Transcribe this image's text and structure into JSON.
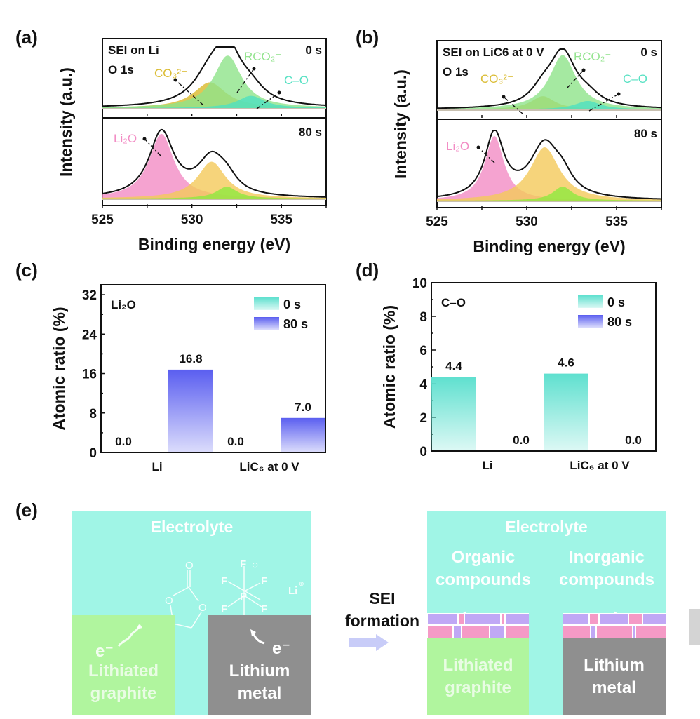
{
  "panels": {
    "a": "(a)",
    "b": "(b)",
    "c": "(c)",
    "d": "(d)",
    "e": "(e)"
  },
  "chart_data": [
    {
      "id": "a",
      "type": "area",
      "title": "SEI on Li",
      "subtitle": "O 1s",
      "xlabel": "Binding energy (eV)",
      "ylabel": "Intensity (a.u.)",
      "xlim": [
        525,
        537.5
      ],
      "xticks": [
        525,
        530,
        535
      ],
      "grid": false,
      "subplots": [
        {
          "time_label": "0 s",
          "components": [
            {
              "name": "CO3 2-",
              "label": "CO₃²⁻",
              "center": 531.0,
              "height": 0.42,
              "width": 1.1,
              "color": "#d9b92a"
            },
            {
              "name": "RCO2-",
              "label": "RCO₂⁻",
              "center": 532.0,
              "height": 0.86,
              "width": 0.95,
              "color": "#8fe38a"
            },
            {
              "name": "C-O",
              "label": "C–O",
              "center": 533.3,
              "height": 0.2,
              "width": 0.9,
              "color": "#4fe0c0"
            }
          ],
          "envelope_peak": 532.0
        },
        {
          "time_label": "80 s",
          "components": [
            {
              "name": "Li2O",
              "label": "Li₂O",
              "center": 528.3,
              "height": 0.93,
              "width": 0.85,
              "color": "#f28cc4"
            },
            {
              "name": "CO3 2-",
              "label": "",
              "center": 531.1,
              "height": 0.53,
              "width": 0.95,
              "color": "#f4c95a"
            },
            {
              "name": "RCO2-",
              "label": "",
              "center": 531.95,
              "height": 0.17,
              "width": 0.7,
              "color": "#8fe840"
            }
          ],
          "envelope_peak": 528.3
        }
      ]
    },
    {
      "id": "b",
      "type": "area",
      "title": "SEI on LiC6 at 0 V",
      "subtitle": "O 1s",
      "xlabel": "Binding energy (eV)",
      "ylabel": "Intensity (a.u.)",
      "xlim": [
        525,
        537.5
      ],
      "xticks": [
        525,
        530,
        535
      ],
      "grid": false,
      "subplots": [
        {
          "time_label": "0 s",
          "components": [
            {
              "name": "CO3 2-",
              "label": "CO₃²⁻",
              "center": 530.9,
              "height": 0.22,
              "width": 0.8,
              "color": "#d9b92a"
            },
            {
              "name": "RCO2-",
              "label": "RCO₂⁻",
              "center": 532.0,
              "height": 0.9,
              "width": 0.9,
              "color": "#8fe38a"
            },
            {
              "name": "C-O",
              "label": "C–O",
              "center": 533.4,
              "height": 0.14,
              "width": 0.85,
              "color": "#4fe0c0"
            }
          ],
          "envelope_peak": 532.0
        },
        {
          "time_label": "80 s",
          "components": [
            {
              "name": "Li2O",
              "label": "Li₂O",
              "center": 528.2,
              "height": 0.92,
              "width": 0.65,
              "color": "#f28cc4"
            },
            {
              "name": "CO3 2-",
              "label": "",
              "center": 531.0,
              "height": 0.76,
              "width": 1.0,
              "color": "#f4c95a"
            },
            {
              "name": "RCO2-",
              "label": "",
              "center": 532.0,
              "height": 0.2,
              "width": 0.65,
              "color": "#8fe840"
            }
          ],
          "envelope_peak": 528.2
        }
      ]
    },
    {
      "id": "c",
      "type": "bar",
      "title": "Li₂O",
      "xlabel": "",
      "ylabel": "Atomic ratio (%)",
      "categories": [
        "Li",
        "LiC₆ at 0 V"
      ],
      "series": [
        {
          "name": "0 s",
          "values": [
            0.0,
            0.0
          ],
          "color": "#5fe0cf"
        },
        {
          "name": "80 s",
          "values": [
            16.8,
            7.0
          ],
          "color": "#5a5ef0"
        }
      ],
      "data_labels": [
        [
          "0.0",
          "0.0"
        ],
        [
          "16.8",
          "7.0"
        ]
      ],
      "ylim": [
        0,
        34
      ],
      "yticks": [
        0,
        8,
        16,
        24,
        32
      ],
      "legend": "top-right",
      "grid": false
    },
    {
      "id": "d",
      "type": "bar",
      "title": "C–O",
      "xlabel": "",
      "ylabel": "Atomic ratio (%)",
      "categories": [
        "Li",
        "LiC₆ at 0 V"
      ],
      "series": [
        {
          "name": "0 s",
          "values": [
            4.4,
            4.6
          ],
          "color": "#5fe0cf"
        },
        {
          "name": "80 s",
          "values": [
            0.0,
            0.0
          ],
          "color": "#5a5ef0"
        }
      ],
      "data_labels": [
        [
          "4.4",
          "4.6"
        ],
        [
          "0.0",
          "0.0"
        ]
      ],
      "ylim": [
        0,
        10
      ],
      "yticks": [
        0,
        2,
        4,
        6,
        8,
        10
      ],
      "legend": "top-right",
      "grid": false
    }
  ],
  "diagram": {
    "arrow_label_line1": "SEI",
    "arrow_label_line2": "formation",
    "before": {
      "electrolyte": "Electrolyte",
      "molecule_ec_label": "ethylene carbonate",
      "pf6_label": "PF6-",
      "li_ion": "Li",
      "graphite_line1": "Lithiated",
      "graphite_line2": "graphite",
      "metal_line1": "Lithium",
      "metal_line2": "metal",
      "electron": "e⁻"
    },
    "after": {
      "electrolyte": "Electrolyte",
      "organic_line1": "Organic",
      "organic_line2": "compounds",
      "inorganic_line1": "Inorganic",
      "inorganic_line2": "compounds",
      "graphite_line1": "Lithiated",
      "graphite_line2": "graphite",
      "metal_line1": "Lithium",
      "metal_line2": "metal"
    },
    "colors": {
      "electrolyte": "#a0f5e6",
      "graphite": "#b0f59e",
      "metal": "#8f8f8f",
      "sei_purple": "#c0a8f5",
      "sei_pink": "#f59ac6",
      "arrow": "#c8ccf8"
    }
  }
}
